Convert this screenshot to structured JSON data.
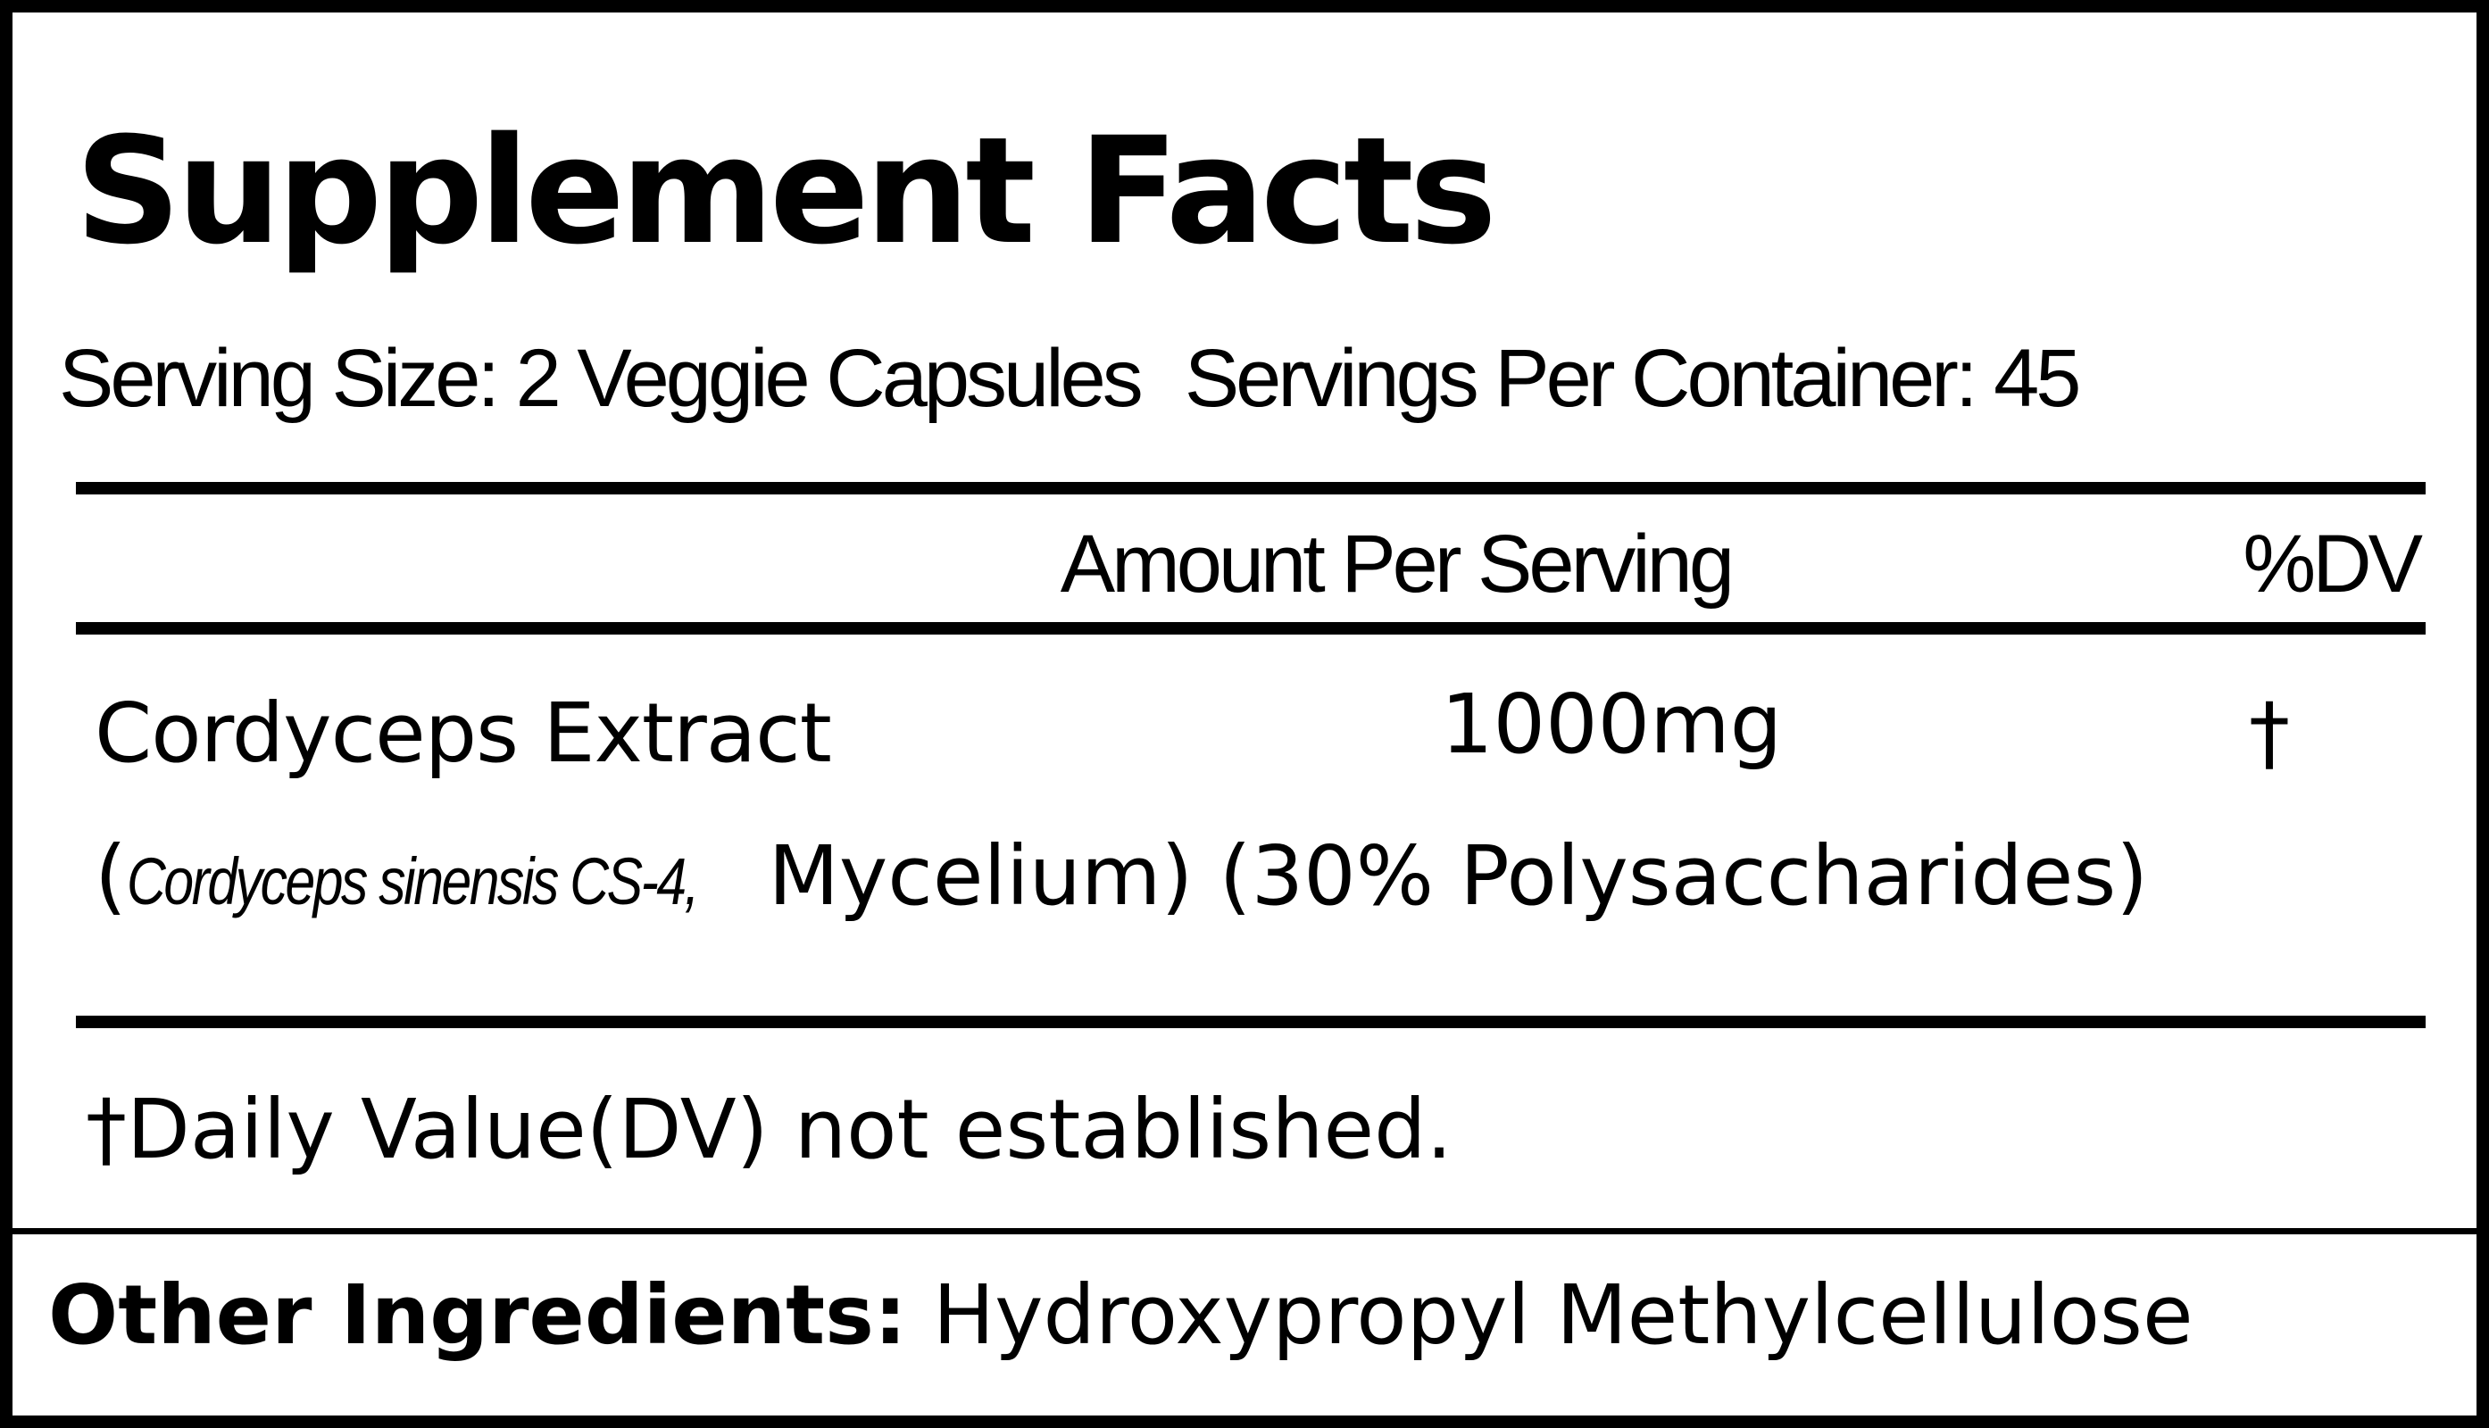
{
  "title": "Supplement Facts",
  "serving_size": "Serving Size: 2 Veggie Capsules",
  "servings_per_container": "Servings Per Container: 45",
  "header": {
    "amount": "Amount Per Serving",
    "dv": "%DV"
  },
  "ingredients": [
    {
      "name": "Cordyceps Extract",
      "amount": "1000mg",
      "dv": "†",
      "source_species": "Cordyceps sinensis CS-4,",
      "source_rest": "Mycelium) (30% Polysaccharides)"
    }
  ],
  "footnote": "†Daily Value(DV) not established.",
  "other_ingredients": {
    "label": "Other Ingredients:",
    "value": "Hydroxypropyl Methylcellulose"
  }
}
